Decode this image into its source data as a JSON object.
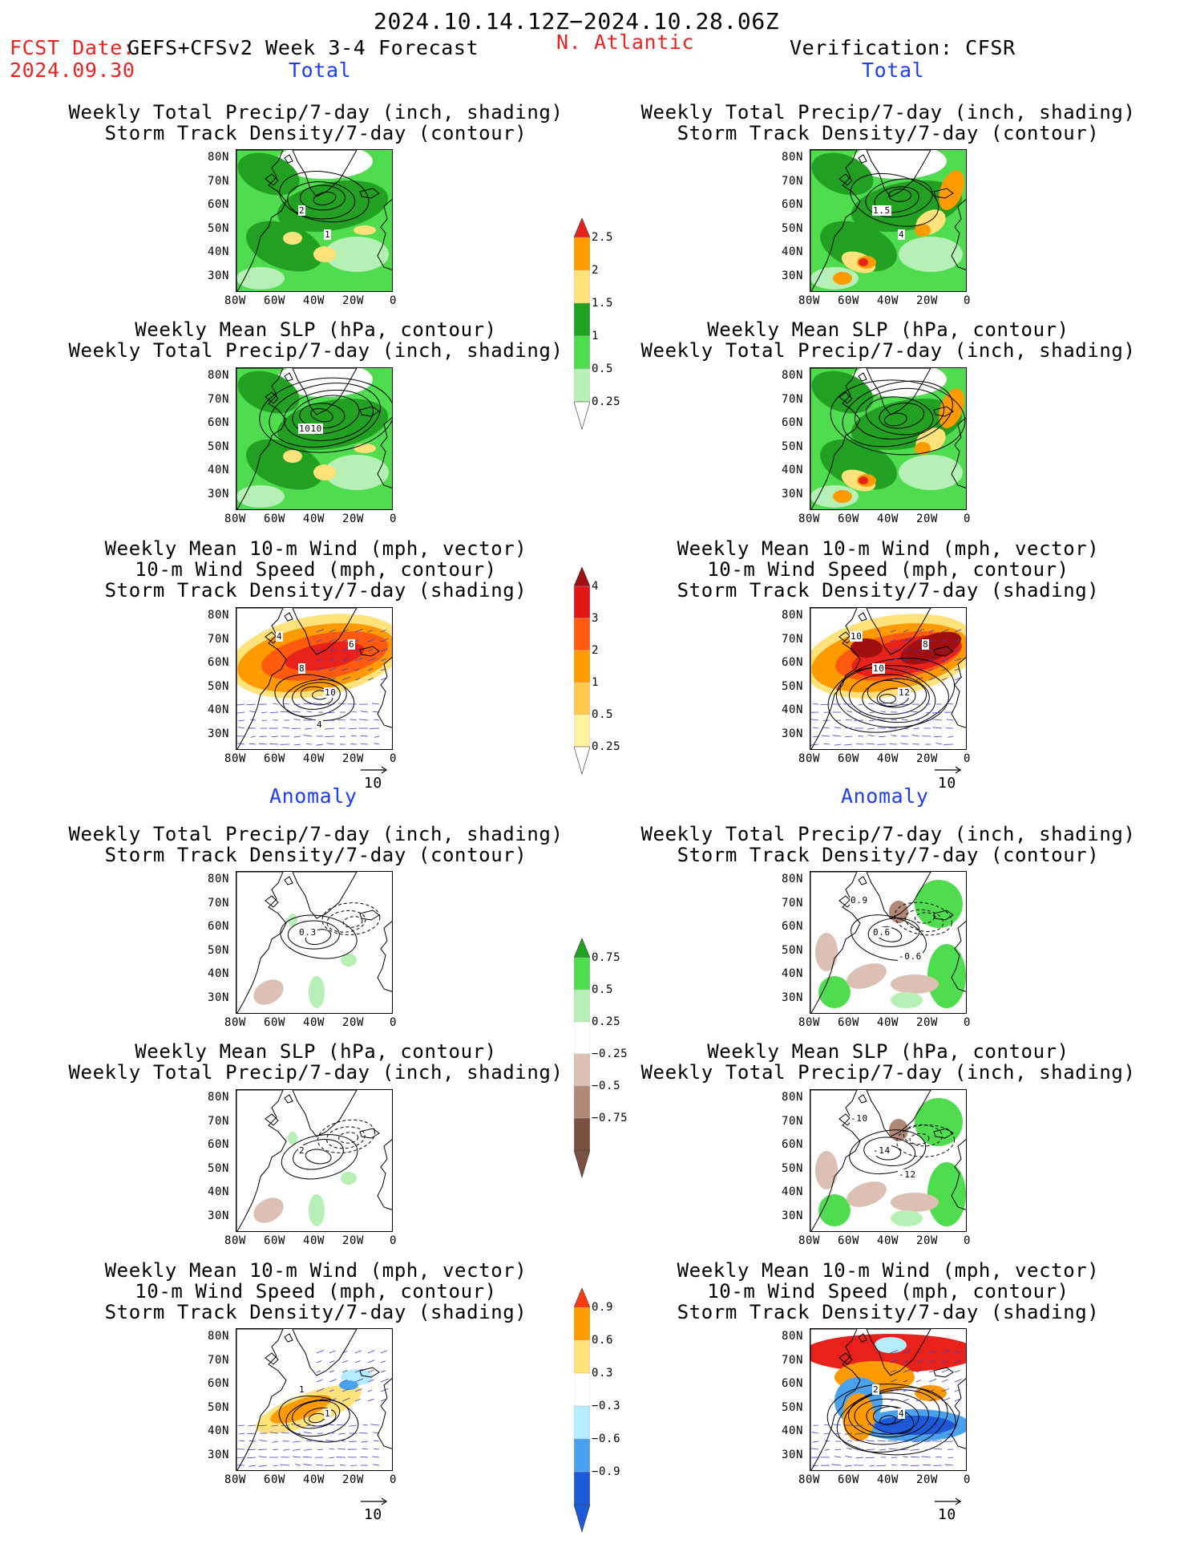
{
  "header": {
    "period": "2024.10.14.12Z−2024.10.28.06Z",
    "fcst_label": "FCST Date:",
    "fcst_date": "2024.09.30",
    "model": "GEFS+CFSv2 Week 3-4 Forecast",
    "region": "N. Atlantic",
    "verification": "Verification: CFSR",
    "left_total": "Total",
    "right_total": "Total"
  },
  "sections": {
    "anomaly_left": "Anomaly",
    "anomaly_right": "Anomaly"
  },
  "panel_titles": {
    "precip_track": [
      "Weekly Total Precip/7-day (inch, shading)",
      "Storm Track Density/7-day (contour)"
    ],
    "slp_precip": [
      "Weekly Mean SLP (hPa, contour)",
      "Weekly Total Precip/7-day (inch, shading)"
    ],
    "wind_track": [
      "Weekly Mean 10-m Wind (mph, vector)",
      "10-m Wind Speed (mph, contour)",
      "Storm Track Density/7-day (shading)"
    ]
  },
  "axes": {
    "lat_ticks": [
      "80N",
      "70N",
      "60N",
      "50N",
      "40N",
      "30N"
    ],
    "lon_ticks": [
      "80W",
      "60W",
      "40W",
      "20W",
      "0"
    ]
  },
  "vector_scale": "10",
  "contour_labels": {
    "tl_track_total": [
      "2",
      "1"
    ],
    "tl_slp_total": [
      "1010"
    ],
    "tl_wind_total": [
      "8",
      "10",
      "4",
      "6",
      "4"
    ],
    "tr_track_total": [
      "1.5",
      "4"
    ],
    "tr_wind_total": [
      "10",
      "12",
      "10",
      "8"
    ],
    "al_track_anom": [
      "0.3"
    ],
    "al_slp_anom": [
      "2"
    ],
    "al_wind_anom": [
      "1",
      "1"
    ],
    "ar_track_anom": [
      "0.6",
      "-0.6",
      "0.9"
    ],
    "ar_slp_anom": [
      "-14",
      "-12",
      "-10"
    ],
    "ar_wind_anom": [
      "2",
      "4"
    ]
  },
  "colorbars": {
    "precip_total": {
      "labels": [
        "2.5",
        "2",
        "1.5",
        "1",
        "0.5",
        "0.25"
      ],
      "colors": [
        "#e8221a",
        "#ff9a00",
        "#ffe27a",
        "#22a022",
        "#4fdc4f",
        "#b6f0b6"
      ]
    },
    "track_total": {
      "labels": [
        "4",
        "3",
        "2",
        "1",
        "0.5",
        "0.25"
      ],
      "colors": [
        "#a01010",
        "#e01818",
        "#ff5a10",
        "#ff9a00",
        "#ffc850",
        "#fff2a0"
      ]
    },
    "precip_anom": {
      "labels": [
        "0.75",
        "0.5",
        "0.25",
        "−0.25",
        "−0.5",
        "−0.75"
      ],
      "colors": [
        "#22a022",
        "#4fdc4f",
        "#b6f0b6",
        "#ffffff",
        "#dcc0b4",
        "#b08878",
        "#7a5040"
      ]
    },
    "track_anom": {
      "labels": [
        "0.9",
        "0.6",
        "0.3",
        "−0.3",
        "−0.6",
        "−0.9"
      ],
      "colors": [
        "#ff3a10",
        "#ff9a00",
        "#ffe27a",
        "#ffffff",
        "#b6ecff",
        "#4aa2ee",
        "#1c5ad8"
      ]
    }
  },
  "map_colors": {
    "land_outline": "#000000",
    "green_dark": "#22a022",
    "green_mid": "#4fdc4f",
    "green_light": "#b6f0b6",
    "yellow": "#ffe27a",
    "orange": "#ff9a00",
    "red": "#e8221a",
    "dark_red": "#a01010",
    "brown_light": "#dcc0b4",
    "brown_mid": "#b08878",
    "blue_light": "#b6ecff",
    "blue_mid": "#4aa2ee",
    "blue_dark": "#1c5ad8",
    "vector_blue": "#3a3ad0"
  }
}
